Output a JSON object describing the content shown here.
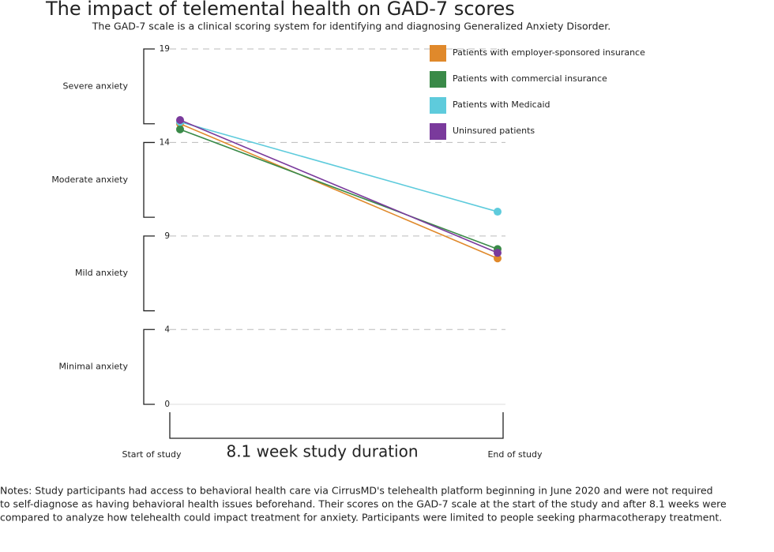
{
  "chart_data": {
    "type": "line",
    "title": "The impact of telemental health on GAD-7 scores",
    "subtitle": "The GAD-7 scale is a clinical scoring system for identifying and diagnosing Generalized Anxiety Disorder.",
    "categories": [
      "Start of study",
      "End of study"
    ],
    "x_annotation": "8.1 week study duration",
    "series": [
      {
        "name": "Patients with employer-sponsored insurance",
        "color": "#e0892b",
        "values": [
          15.0,
          7.8
        ]
      },
      {
        "name": "Patients with commercial insurance",
        "color": "#3a8a48",
        "values": [
          14.7,
          8.3
        ]
      },
      {
        "name": "Patients with Medicaid",
        "color": "#5ecbdc",
        "values": [
          15.1,
          10.3
        ]
      },
      {
        "name": "Uninsured patients",
        "color": "#7a3a9c",
        "values": [
          15.2,
          8.1
        ]
      }
    ],
    "bands": [
      {
        "label": "Severe anxiety",
        "from": 15,
        "to": 19
      },
      {
        "label": "Moderate anxiety",
        "from": 10,
        "to": 14
      },
      {
        "label": "Mild anxiety",
        "from": 5,
        "to": 9
      },
      {
        "label": "Minimal anxiety",
        "from": 0,
        "to": 4
      }
    ],
    "ylim": [
      0,
      19
    ],
    "yticks": [
      0,
      4,
      9,
      14,
      19
    ],
    "grid": true,
    "notes": [
      "Notes: Study participants had access to behavioral health care via CirrusMD's telehealth platform beginning in June 2020 and were not required",
      "to self-diagnose as having behavioral health issues beforehand. Their scores on the GAD-7 scale at the start of the study and after 8.1 weeks were",
      "compared to analyze how telehealth could impact treatment for anxiety.  Participants were limited to  people seeking pharmacotherapy treatment."
    ]
  }
}
